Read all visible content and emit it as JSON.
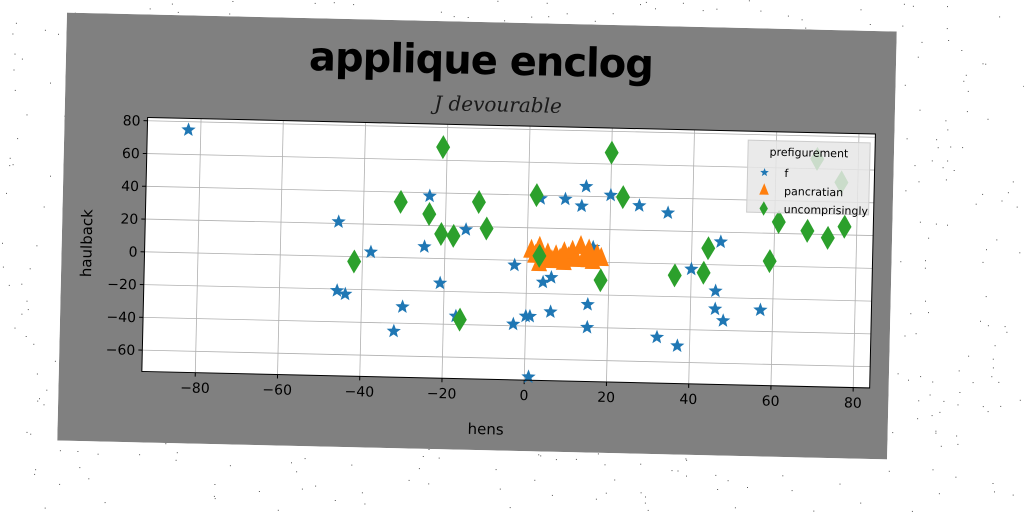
{
  "chart_data": {
    "type": "scatter",
    "title": "applique enclog",
    "subtitle": "J devourable",
    "xlabel": "hens",
    "ylabel": "haulback",
    "xlim": [
      -93,
      84
    ],
    "ylim": [
      -73,
      82
    ],
    "xticks": [
      -80,
      -60,
      -40,
      -20,
      0,
      20,
      40,
      60,
      80
    ],
    "yticks": [
      -60,
      -40,
      -20,
      0,
      20,
      40,
      60,
      80
    ],
    "grid": true,
    "legend": {
      "title": "prefigurement",
      "placement": "top-right",
      "entries": [
        "f",
        "pancratian",
        "uncomprisingly"
      ]
    },
    "series": [
      {
        "name": "f",
        "marker": "star",
        "color": "#1f77b4",
        "points": [
          [
            -83,
            75
          ],
          [
            -46,
            21
          ],
          [
            -46,
            -21
          ],
          [
            -44,
            -23
          ],
          [
            -38,
            3
          ],
          [
            -32,
            -45
          ],
          [
            -30,
            -30
          ],
          [
            -24,
            38
          ],
          [
            -25,
            7
          ],
          [
            -21,
            -15
          ],
          [
            -17,
            -35
          ],
          [
            -15,
            18
          ],
          [
            -3,
            -39
          ],
          [
            -3,
            -3
          ],
          [
            0,
            -34
          ],
          [
            1,
            -34
          ],
          [
            1,
            -71
          ],
          [
            3,
            38
          ],
          [
            4,
            -13
          ],
          [
            6,
            -31
          ],
          [
            6,
            -10
          ],
          [
            9,
            38
          ],
          [
            13,
            34
          ],
          [
            14,
            46
          ],
          [
            15,
            -26
          ],
          [
            15,
            -40
          ],
          [
            16,
            9
          ],
          [
            20,
            41
          ],
          [
            27,
            35
          ],
          [
            32,
            -45
          ],
          [
            34,
            31
          ],
          [
            37,
            -50
          ],
          [
            40,
            -3
          ],
          [
            46,
            -16
          ],
          [
            46,
            -27
          ],
          [
            47,
            14
          ],
          [
            48,
            -34
          ],
          [
            57,
            -27
          ]
        ]
      },
      {
        "name": "pancratian",
        "marker": "triangle",
        "color": "#ff7f0e",
        "points": [
          [
            1,
            6
          ],
          [
            2,
            3
          ],
          [
            3,
            8
          ],
          [
            4,
            1
          ],
          [
            5,
            4
          ],
          [
            6,
            0
          ],
          [
            7,
            3
          ],
          [
            8,
            1
          ],
          [
            9,
            5
          ],
          [
            10,
            2
          ],
          [
            11,
            6
          ],
          [
            12,
            1
          ],
          [
            13,
            9
          ],
          [
            14,
            3
          ],
          [
            15,
            7
          ],
          [
            16,
            0
          ],
          [
            17,
            4
          ],
          [
            18,
            2
          ],
          [
            3,
            -2
          ],
          [
            9,
            -1
          ],
          [
            15,
            1
          ]
        ]
      },
      {
        "name": "uncomprisingly",
        "marker": "diamond",
        "color": "#2ca02c",
        "points": [
          [
            -42,
            -3
          ],
          [
            -31,
            34
          ],
          [
            -24,
            27
          ],
          [
            -21,
            15
          ],
          [
            -21,
            68
          ],
          [
            -18,
            14
          ],
          [
            -16,
            -37
          ],
          [
            -12,
            35
          ],
          [
            -10,
            19
          ],
          [
            2,
            40
          ],
          [
            3,
            3
          ],
          [
            18,
            -11
          ],
          [
            20,
            67
          ],
          [
            23,
            40
          ],
          [
            36,
            -7
          ],
          [
            43,
            -5
          ],
          [
            44,
            10
          ],
          [
            59,
            3
          ],
          [
            61,
            27
          ],
          [
            68,
            22
          ],
          [
            70,
            66
          ],
          [
            73,
            18
          ],
          [
            76,
            52
          ],
          [
            77,
            25
          ]
        ]
      }
    ]
  }
}
